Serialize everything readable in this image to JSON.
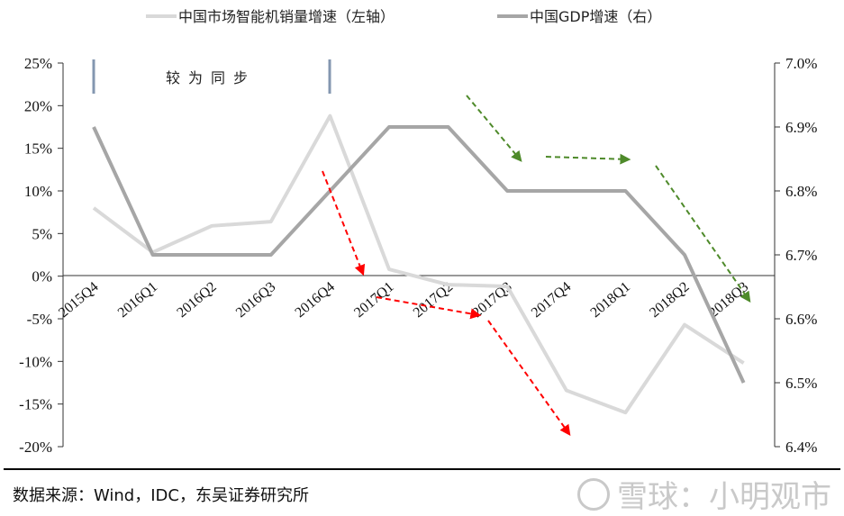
{
  "chart_data": {
    "type": "line",
    "categories": [
      "2015Q4",
      "2016Q1",
      "2016Q2",
      "2016Q3",
      "2016Q4",
      "2017Q1",
      "2017Q2",
      "2017Q3",
      "2017Q4",
      "2018Q1",
      "2018Q2",
      "2018Q3"
    ],
    "series": [
      {
        "name": "中国市场智能机销量增速（左轴）",
        "axis": "left",
        "color": "#d9d9d9",
        "values": [
          8.0,
          2.8,
          5.9,
          6.4,
          18.8,
          0.8,
          -1.0,
          -1.2,
          -13.4,
          -16.0,
          -5.7,
          -10.2
        ]
      },
      {
        "name": "中国GDP增速（右）",
        "axis": "right",
        "color": "#a6a6a6",
        "values": [
          6.9,
          6.7,
          6.7,
          6.7,
          6.8,
          6.9,
          6.9,
          6.8,
          6.8,
          6.8,
          6.7,
          6.5
        ]
      }
    ],
    "y_left": {
      "ticks": [
        "25%",
        "20%",
        "15%",
        "10%",
        "5%",
        "0%",
        "-5%",
        "-10%",
        "-15%",
        "-20%"
      ],
      "range": [
        -20,
        25
      ]
    },
    "y_right": {
      "ticks": [
        "7.0%",
        "6.9%",
        "6.8%",
        "6.7%",
        "6.6%",
        "6.5%",
        "6.4%"
      ],
      "range": [
        6.4,
        7.0
      ]
    },
    "annotation": "较为同步",
    "grid": false,
    "legend_position": "top"
  },
  "source": "数据来源：Wind，IDC，东吴证券研究所",
  "watermark": "雪球：小明观市"
}
